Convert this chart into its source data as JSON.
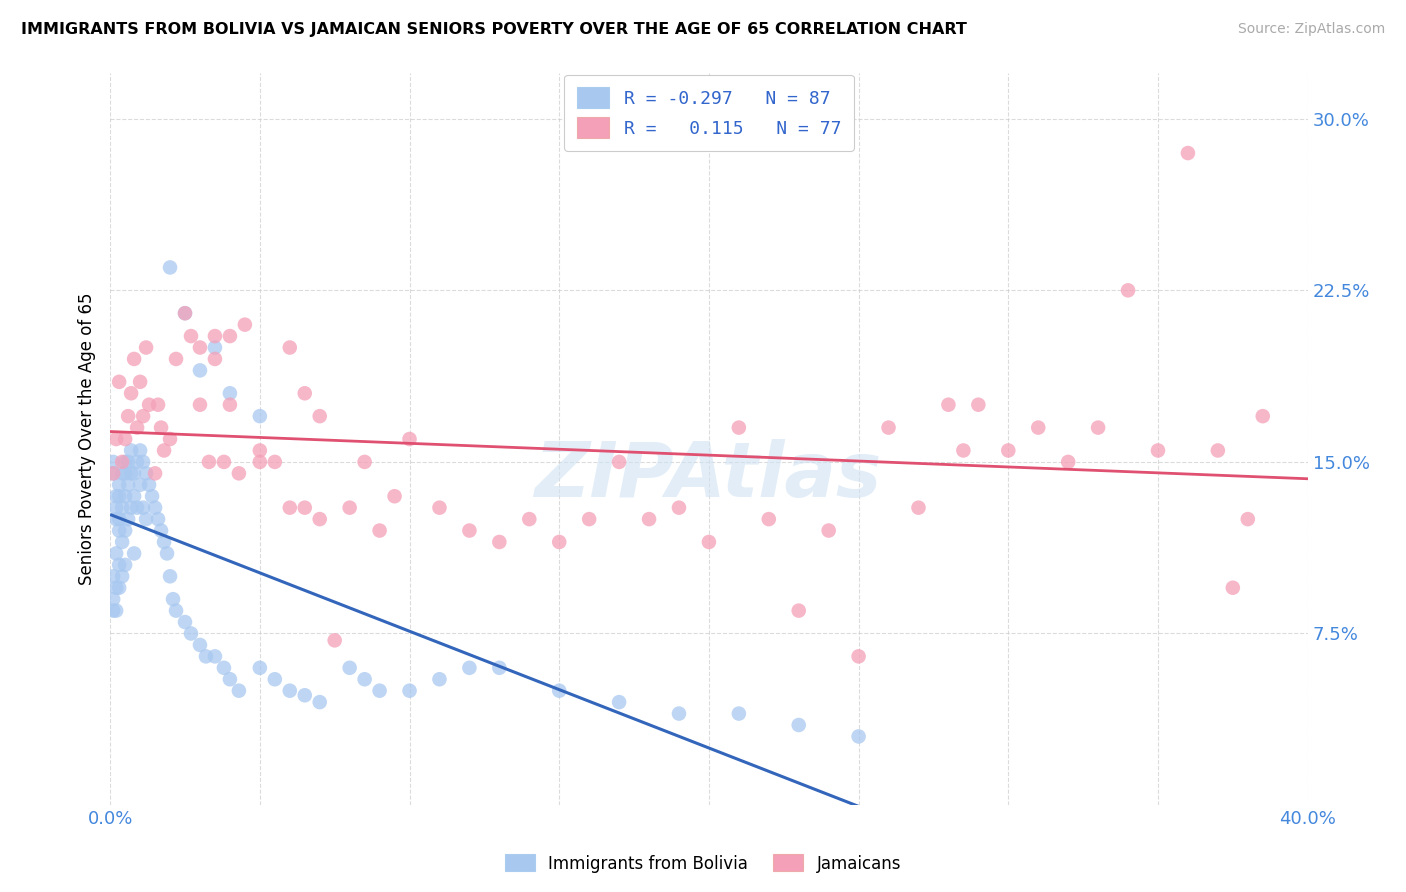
{
  "title": "IMMIGRANTS FROM BOLIVIA VS JAMAICAN SENIORS POVERTY OVER THE AGE OF 65 CORRELATION CHART",
  "source": "Source: ZipAtlas.com",
  "ylabel": "Seniors Poverty Over the Age of 65",
  "y_ticks": [
    0.075,
    0.15,
    0.225,
    0.3
  ],
  "y_tick_labels": [
    "7.5%",
    "15.0%",
    "22.5%",
    "30.0%"
  ],
  "xlim": [
    0.0,
    0.4
  ],
  "ylim": [
    0.0,
    0.32
  ],
  "bolivia_color": "#a8c8f0",
  "jamaica_color": "#f4a0b8",
  "bolivia_line_color": "#3366bb",
  "jamaica_line_color": "#e05070",
  "dash_color": "#b0c8e0",
  "bolivia_R": -0.297,
  "bolivia_N": 87,
  "jamaica_R": 0.115,
  "jamaica_N": 77,
  "background_color": "#ffffff",
  "grid_color": "#cccccc",
  "bolivia_scatter_x": [
    0.001,
    0.001,
    0.001,
    0.001,
    0.001,
    0.002,
    0.002,
    0.002,
    0.002,
    0.002,
    0.002,
    0.003,
    0.003,
    0.003,
    0.003,
    0.003,
    0.003,
    0.004,
    0.004,
    0.004,
    0.004,
    0.005,
    0.005,
    0.005,
    0.005,
    0.005,
    0.006,
    0.006,
    0.006,
    0.007,
    0.007,
    0.007,
    0.008,
    0.008,
    0.008,
    0.009,
    0.009,
    0.01,
    0.01,
    0.011,
    0.011,
    0.012,
    0.012,
    0.013,
    0.014,
    0.015,
    0.016,
    0.017,
    0.018,
    0.019,
    0.02,
    0.021,
    0.022,
    0.025,
    0.027,
    0.03,
    0.032,
    0.035,
    0.038,
    0.04,
    0.043,
    0.05,
    0.055,
    0.06,
    0.065,
    0.07,
    0.08,
    0.085,
    0.09,
    0.1,
    0.11,
    0.12,
    0.13,
    0.15,
    0.17,
    0.19,
    0.21,
    0.23,
    0.25,
    0.02,
    0.025,
    0.03,
    0.035,
    0.04,
    0.05
  ],
  "bolivia_scatter_y": [
    0.145,
    0.15,
    0.1,
    0.09,
    0.085,
    0.135,
    0.13,
    0.125,
    0.11,
    0.095,
    0.085,
    0.14,
    0.135,
    0.125,
    0.12,
    0.105,
    0.095,
    0.145,
    0.13,
    0.115,
    0.1,
    0.15,
    0.145,
    0.135,
    0.12,
    0.105,
    0.15,
    0.14,
    0.125,
    0.155,
    0.145,
    0.13,
    0.145,
    0.135,
    0.11,
    0.15,
    0.13,
    0.155,
    0.14,
    0.15,
    0.13,
    0.145,
    0.125,
    0.14,
    0.135,
    0.13,
    0.125,
    0.12,
    0.115,
    0.11,
    0.1,
    0.09,
    0.085,
    0.08,
    0.075,
    0.07,
    0.065,
    0.065,
    0.06,
    0.055,
    0.05,
    0.06,
    0.055,
    0.05,
    0.048,
    0.045,
    0.06,
    0.055,
    0.05,
    0.05,
    0.055,
    0.06,
    0.06,
    0.05,
    0.045,
    0.04,
    0.04,
    0.035,
    0.03,
    0.235,
    0.215,
    0.19,
    0.2,
    0.18,
    0.17
  ],
  "jamaica_scatter_x": [
    0.001,
    0.002,
    0.003,
    0.004,
    0.005,
    0.006,
    0.007,
    0.008,
    0.009,
    0.01,
    0.011,
    0.012,
    0.013,
    0.015,
    0.016,
    0.017,
    0.018,
    0.02,
    0.022,
    0.025,
    0.027,
    0.03,
    0.033,
    0.035,
    0.038,
    0.04,
    0.043,
    0.045,
    0.05,
    0.055,
    0.06,
    0.065,
    0.07,
    0.075,
    0.08,
    0.085,
    0.09,
    0.095,
    0.1,
    0.11,
    0.12,
    0.13,
    0.14,
    0.15,
    0.16,
    0.17,
    0.18,
    0.19,
    0.2,
    0.21,
    0.22,
    0.23,
    0.24,
    0.25,
    0.26,
    0.27,
    0.28,
    0.285,
    0.29,
    0.3,
    0.31,
    0.32,
    0.33,
    0.34,
    0.35,
    0.36,
    0.37,
    0.375,
    0.38,
    0.385,
    0.03,
    0.035,
    0.04,
    0.05,
    0.06,
    0.065,
    0.07
  ],
  "jamaica_scatter_y": [
    0.145,
    0.16,
    0.185,
    0.15,
    0.16,
    0.17,
    0.18,
    0.195,
    0.165,
    0.185,
    0.17,
    0.2,
    0.175,
    0.145,
    0.175,
    0.165,
    0.155,
    0.16,
    0.195,
    0.215,
    0.205,
    0.175,
    0.15,
    0.205,
    0.15,
    0.175,
    0.145,
    0.21,
    0.15,
    0.15,
    0.13,
    0.13,
    0.125,
    0.072,
    0.13,
    0.15,
    0.12,
    0.135,
    0.16,
    0.13,
    0.12,
    0.115,
    0.125,
    0.115,
    0.125,
    0.15,
    0.125,
    0.13,
    0.115,
    0.165,
    0.125,
    0.085,
    0.12,
    0.065,
    0.165,
    0.13,
    0.175,
    0.155,
    0.175,
    0.155,
    0.165,
    0.15,
    0.165,
    0.225,
    0.155,
    0.285,
    0.155,
    0.095,
    0.125,
    0.17,
    0.2,
    0.195,
    0.205,
    0.155,
    0.2,
    0.18,
    0.17
  ]
}
